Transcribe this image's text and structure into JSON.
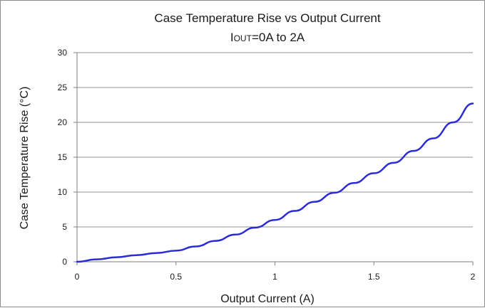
{
  "chart_data": {
    "type": "line",
    "title": "Case Temperature Rise vs Output Current",
    "subtitle": {
      "prefix": "I",
      "subscript": "OUT",
      "suffix": "=0A to 2A"
    },
    "xlabel": "Output Current (A)",
    "ylabel": "Case Temperature Rise (°C)",
    "xlim": [
      0,
      2
    ],
    "ylim": [
      0,
      30
    ],
    "xticks": [
      "0",
      "0.5",
      "1",
      "1.5",
      "2"
    ],
    "yticks": [
      "0",
      "5",
      "10",
      "15",
      "20",
      "25",
      "30"
    ],
    "grid": true,
    "series": [
      {
        "color": "#2b2bd6",
        "x": [
          0,
          0.1,
          0.2,
          0.3,
          0.4,
          0.5,
          0.6,
          0.7,
          0.8,
          0.9,
          1.0,
          1.1,
          1.2,
          1.3,
          1.4,
          1.5,
          1.6,
          1.7,
          1.8,
          1.9,
          2.0
        ],
        "y": [
          0,
          0.35,
          0.65,
          0.95,
          1.25,
          1.6,
          2.2,
          3.0,
          3.9,
          4.9,
          6.0,
          7.3,
          8.6,
          9.9,
          11.3,
          12.7,
          14.2,
          15.9,
          17.7,
          20.0,
          22.7
        ]
      }
    ]
  }
}
